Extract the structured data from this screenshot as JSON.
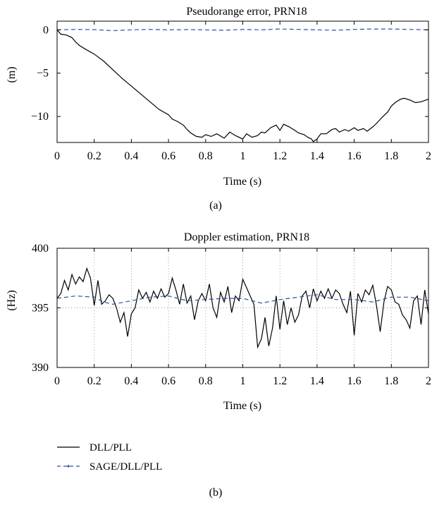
{
  "panel_labels": [
    "(a)",
    "(b)"
  ],
  "legend": [
    {
      "label": "DLL/PLL",
      "color": "#000000",
      "style": "solid"
    },
    {
      "label": "SAGE/DLL/PLL",
      "color": "#2e4fa3",
      "style": "dashed"
    }
  ],
  "chart_data": [
    {
      "type": "line",
      "title": "Pseudorange error, PRN18",
      "xlabel": "Time (s)",
      "ylabel": "(m)",
      "xlim": [
        0,
        2
      ],
      "ylim": [
        -13,
        1
      ],
      "xticks": [
        0,
        0.2,
        0.4,
        0.6,
        0.8,
        1,
        1.2,
        1.4,
        1.6,
        1.8,
        2
      ],
      "xtick_labels": [
        "0",
        "0.2",
        "0.4",
        "0.6",
        "0.8",
        "1",
        "1.2",
        "1.4",
        "1.6",
        "1.8",
        "2"
      ],
      "yticks": [
        0,
        -5,
        -10
      ],
      "ytick_labels": [
        "0",
        "−5",
        "−10"
      ],
      "grid": false,
      "series": [
        {
          "name": "DLL/PLL",
          "color": "#000000",
          "dash": "solid",
          "x": [
            0,
            0.02,
            0.05,
            0.08,
            0.1,
            0.12,
            0.15,
            0.2,
            0.25,
            0.3,
            0.35,
            0.4,
            0.45,
            0.5,
            0.55,
            0.6,
            0.62,
            0.65,
            0.68,
            0.7,
            0.72,
            0.75,
            0.78,
            0.8,
            0.83,
            0.86,
            0.9,
            0.93,
            0.96,
            1.0,
            1.02,
            1.05,
            1.08,
            1.1,
            1.12,
            1.15,
            1.18,
            1.2,
            1.22,
            1.25,
            1.28,
            1.3,
            1.33,
            1.35,
            1.37,
            1.38,
            1.4,
            1.42,
            1.45,
            1.48,
            1.5,
            1.52,
            1.55,
            1.57,
            1.6,
            1.62,
            1.65,
            1.67,
            1.7,
            1.72,
            1.75,
            1.78,
            1.8,
            1.82,
            1.85,
            1.87,
            1.9,
            1.93,
            1.96,
            2.0
          ],
          "y": [
            0,
            -0.5,
            -0.6,
            -0.9,
            -1.4,
            -1.8,
            -2.2,
            -2.8,
            -3.6,
            -4.6,
            -5.6,
            -6.5,
            -7.4,
            -8.3,
            -9.2,
            -9.8,
            -10.3,
            -10.6,
            -11.0,
            -11.5,
            -11.9,
            -12.3,
            -12.4,
            -12.1,
            -12.3,
            -12.0,
            -12.5,
            -11.8,
            -12.2,
            -12.6,
            -12.0,
            -12.4,
            -12.2,
            -11.8,
            -11.9,
            -11.3,
            -11.0,
            -11.6,
            -10.9,
            -11.2,
            -11.6,
            -11.9,
            -12.1,
            -12.4,
            -12.6,
            -12.9,
            -12.6,
            -12.0,
            -12.0,
            -11.5,
            -11.4,
            -11.8,
            -11.5,
            -11.7,
            -11.3,
            -11.6,
            -11.4,
            -11.7,
            -11.2,
            -10.8,
            -10.1,
            -9.5,
            -8.8,
            -8.4,
            -8.0,
            -7.9,
            -8.1,
            -8.4,
            -8.3,
            -8.0
          ]
        },
        {
          "name": "SAGE/DLL/PLL",
          "color": "#2e4fa3",
          "dash": "dashed",
          "x": [
            0,
            0.1,
            0.2,
            0.3,
            0.4,
            0.5,
            0.6,
            0.7,
            0.8,
            0.9,
            1.0,
            1.1,
            1.2,
            1.3,
            1.4,
            1.5,
            1.6,
            1.7,
            1.8,
            1.9,
            2.0
          ],
          "y": [
            0,
            0.05,
            0.02,
            -0.1,
            0.0,
            0.05,
            0.0,
            0.02,
            0.0,
            -0.05,
            0.05,
            0.0,
            0.1,
            0.05,
            0.0,
            -0.05,
            0.05,
            0.1,
            0.1,
            0.05,
            0.0
          ]
        }
      ]
    },
    {
      "type": "line",
      "title": "Doppler estimation, PRN18",
      "xlabel": "Time (s)",
      "ylabel": "(Hz)",
      "xlim": [
        0,
        2
      ],
      "ylim": [
        390,
        400
      ],
      "xticks": [
        0,
        0.2,
        0.4,
        0.6,
        0.8,
        1,
        1.2,
        1.4,
        1.6,
        1.8,
        2
      ],
      "xtick_labels": [
        "0",
        "0.2",
        "0.4",
        "0.6",
        "0.8",
        "1",
        "1.2",
        "1.4",
        "1.6",
        "1.8",
        "2"
      ],
      "yticks": [
        390,
        395,
        400
      ],
      "ytick_labels": [
        "390",
        "395",
        "400"
      ],
      "grid": true,
      "series": [
        {
          "name": "DLL/PLL",
          "color": "#000000",
          "dash": "solid",
          "x": [
            0,
            0.02,
            0.04,
            0.06,
            0.08,
            0.1,
            0.12,
            0.14,
            0.16,
            0.18,
            0.2,
            0.22,
            0.24,
            0.26,
            0.28,
            0.3,
            0.32,
            0.34,
            0.36,
            0.38,
            0.4,
            0.42,
            0.44,
            0.46,
            0.48,
            0.5,
            0.52,
            0.54,
            0.56,
            0.58,
            0.6,
            0.62,
            0.64,
            0.66,
            0.68,
            0.7,
            0.72,
            0.74,
            0.76,
            0.78,
            0.8,
            0.82,
            0.84,
            0.86,
            0.88,
            0.9,
            0.92,
            0.94,
            0.96,
            0.98,
            1.0,
            1.02,
            1.04,
            1.06,
            1.08,
            1.1,
            1.12,
            1.14,
            1.16,
            1.18,
            1.2,
            1.22,
            1.24,
            1.26,
            1.28,
            1.3,
            1.32,
            1.34,
            1.36,
            1.38,
            1.4,
            1.42,
            1.44,
            1.46,
            1.48,
            1.5,
            1.52,
            1.54,
            1.56,
            1.58,
            1.6,
            1.62,
            1.64,
            1.66,
            1.68,
            1.7,
            1.72,
            1.74,
            1.76,
            1.78,
            1.8,
            1.82,
            1.84,
            1.86,
            1.88,
            1.9,
            1.92,
            1.94,
            1.96,
            1.98,
            2.0
          ],
          "y": [
            395.8,
            396.2,
            397.3,
            396.5,
            397.8,
            397.0,
            397.6,
            397.2,
            398.3,
            397.5,
            395.2,
            397.3,
            395.3,
            395.6,
            396.1,
            395.8,
            395.0,
            393.8,
            394.6,
            392.6,
            394.5,
            395.0,
            396.5,
            395.8,
            396.3,
            395.5,
            396.4,
            395.8,
            396.6,
            395.9,
            396.2,
            397.5,
            396.5,
            395.3,
            397.0,
            395.4,
            396.0,
            394.0,
            395.6,
            396.2,
            395.6,
            397.0,
            395.0,
            394.2,
            396.3,
            395.5,
            396.8,
            394.6,
            396.0,
            395.6,
            397.4,
            396.7,
            396.0,
            395.3,
            391.7,
            392.4,
            394.2,
            391.8,
            393.3,
            396.0,
            393.2,
            395.6,
            393.6,
            395.0,
            393.8,
            394.4,
            396.0,
            396.4,
            395.0,
            396.6,
            395.6,
            396.4,
            395.8,
            396.6,
            395.8,
            396.5,
            396.2,
            395.3,
            394.6,
            396.4,
            392.7,
            396.2,
            395.5,
            396.5,
            396.1,
            396.9,
            395.2,
            393.0,
            395.5,
            396.8,
            396.5,
            395.5,
            395.3,
            394.4,
            394.0,
            393.3,
            395.6,
            396.0,
            393.6,
            396.5,
            394.5
          ],
          "note_unused": null
        },
        {
          "name": "SAGE/DLL/PLL",
          "color": "#2e4fa3",
          "dash": "dashed",
          "x": [
            0,
            0.1,
            0.2,
            0.25,
            0.3,
            0.4,
            0.5,
            0.6,
            0.7,
            0.8,
            0.9,
            1.0,
            1.1,
            1.2,
            1.3,
            1.4,
            1.5,
            1.6,
            1.7,
            1.8,
            1.9,
            2.0
          ],
          "y": [
            395.8,
            396.0,
            395.9,
            395.5,
            395.3,
            395.6,
            395.9,
            396.0,
            395.6,
            395.7,
            395.8,
            395.8,
            395.4,
            395.7,
            395.9,
            396.1,
            395.7,
            395.7,
            395.5,
            395.9,
            395.9,
            395.6
          ]
        }
      ]
    }
  ]
}
